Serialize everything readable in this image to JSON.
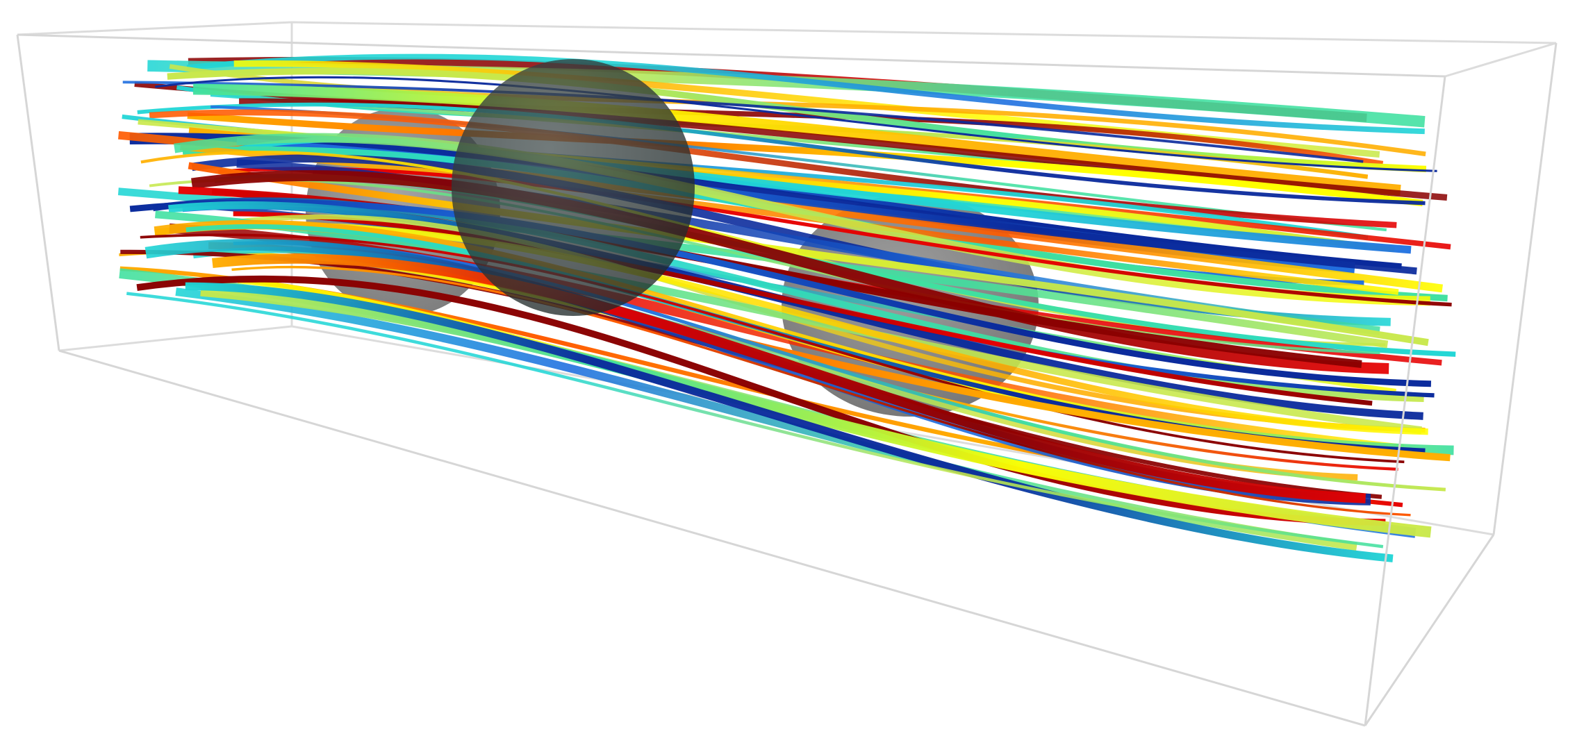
{
  "scene": {
    "description_visible_text": "",
    "background_color": "#ffffff",
    "bounding_box_color": "#d9d9d9",
    "obstacle_sphere_color": "#7f7f7f",
    "front_sphere_color": "#2f3a3a",
    "colormap": [
      "#0a2a9c",
      "#1f6fe0",
      "#21d6d6",
      "#3fe0a0",
      "#c8e84a",
      "#ffff00",
      "#ffae00",
      "#ff5a00",
      "#e60000",
      "#8a0000"
    ],
    "obstacle_count": 3,
    "streamline_count": 70
  }
}
